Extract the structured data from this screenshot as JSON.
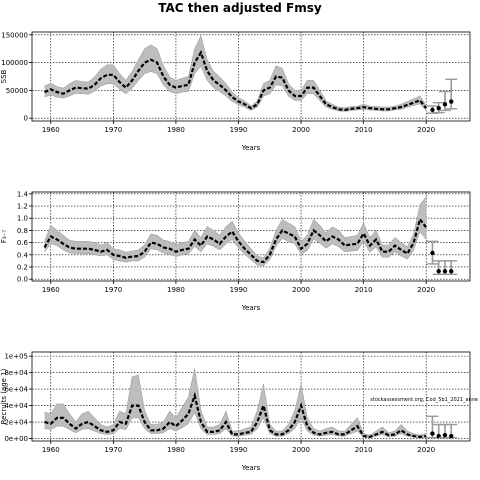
{
  "title": "TAC then adjusted Fmsy",
  "note": "stockassessment.org, Cod_5b1_2021_anne",
  "colors": {
    "band": "#bdbdbd",
    "line": "#000000",
    "forecast": "#999999"
  },
  "chart_data": [
    {
      "type": "line",
      "panel": "ssb",
      "ylabel": "SSB",
      "xlabel": "Years",
      "xlim": [
        1957,
        2027
      ],
      "ylim": [
        -5000,
        155000
      ],
      "xticks": [
        1960,
        1970,
        1980,
        1990,
        2000,
        2010,
        2020
      ],
      "yticks": [
        0,
        50000,
        100000,
        150000
      ],
      "ytick_labels": [
        "0",
        "50000",
        "100000",
        "150000"
      ],
      "grid": true,
      "years": [
        1959,
        1960,
        1961,
        1962,
        1963,
        1964,
        1965,
        1966,
        1967,
        1968,
        1969,
        1970,
        1971,
        1972,
        1973,
        1974,
        1975,
        1976,
        1977,
        1978,
        1979,
        1980,
        1981,
        1982,
        1983,
        1984,
        1985,
        1986,
        1987,
        1988,
        1989,
        1990,
        1991,
        1992,
        1993,
        1994,
        1995,
        1996,
        1997,
        1998,
        1999,
        2000,
        2001,
        2002,
        2003,
        2004,
        2005,
        2006,
        2007,
        2008,
        2009,
        2010,
        2011,
        2012,
        2013,
        2014,
        2015,
        2016,
        2017,
        2018,
        2019,
        2020
      ],
      "estimate": [
        47000,
        52000,
        47000,
        44000,
        50000,
        55000,
        54000,
        53000,
        60000,
        72000,
        78000,
        78000,
        65000,
        55000,
        68000,
        85000,
        100000,
        105000,
        100000,
        75000,
        60000,
        55000,
        58000,
        60000,
        100000,
        118000,
        85000,
        68000,
        60000,
        50000,
        38000,
        30000,
        25000,
        18000,
        25000,
        50000,
        55000,
        75000,
        73000,
        50000,
        40000,
        40000,
        55000,
        55000,
        40000,
        25000,
        20000,
        16000,
        15000,
        17000,
        18000,
        20000,
        18000,
        17000,
        16000,
        16000,
        18000,
        20000,
        24000,
        28000,
        32000,
        18000
      ],
      "lower": [
        38000,
        42000,
        38000,
        36000,
        40000,
        45000,
        44000,
        43000,
        49000,
        58000,
        62000,
        62000,
        52000,
        44000,
        54000,
        68000,
        80000,
        84000,
        80000,
        60000,
        48000,
        44000,
        47000,
        48000,
        80000,
        94000,
        68000,
        55000,
        48000,
        40000,
        30000,
        24000,
        20000,
        14000,
        20000,
        40000,
        44000,
        60000,
        58000,
        40000,
        32000,
        32000,
        44000,
        44000,
        32000,
        20000,
        16000,
        13000,
        12000,
        14000,
        15000,
        16000,
        15000,
        14000,
        13000,
        13000,
        15000,
        16000,
        20000,
        23000,
        26000,
        14000
      ],
      "upper": [
        58000,
        63000,
        57000,
        54000,
        62000,
        68000,
        66000,
        65000,
        74000,
        88000,
        96000,
        96000,
        80000,
        68000,
        84000,
        105000,
        125000,
        132000,
        125000,
        94000,
        74000,
        68000,
        72000,
        75000,
        125000,
        148000,
        105000,
        84000,
        74000,
        62000,
        47000,
        37000,
        31000,
        22000,
        31000,
        62000,
        68000,
        94000,
        90000,
        62000,
        50000,
        50000,
        68000,
        68000,
        50000,
        31000,
        25000,
        20000,
        19000,
        21000,
        22000,
        25000,
        22000,
        21000,
        20000,
        20000,
        22000,
        25000,
        30000,
        35000,
        40000,
        23000
      ],
      "forecast_years": [
        2021,
        2022,
        2023,
        2024
      ],
      "forecast": [
        15000,
        18000,
        25000,
        30000
      ],
      "forecast_lower": [
        9000,
        10000,
        14000,
        17000
      ],
      "forecast_upper": [
        22000,
        28000,
        48000,
        70000
      ]
    },
    {
      "type": "line",
      "panel": "fbar",
      "ylabel": "F₃₋₇",
      "xlabel": "Years",
      "xlim": [
        1957,
        2027
      ],
      "ylim": [
        -0.03,
        1.43
      ],
      "xticks": [
        1960,
        1970,
        1980,
        1990,
        2000,
        2010,
        2020
      ],
      "yticks": [
        0.0,
        0.2,
        0.4,
        0.6,
        0.8,
        1.0,
        1.2,
        1.4
      ],
      "ytick_labels": [
        "0.0",
        "0.2",
        "0.4",
        "0.6",
        "0.8",
        "1.0",
        "1.2",
        "1.4"
      ],
      "grid": true,
      "years": [
        1959,
        1960,
        1961,
        1962,
        1963,
        1964,
        1965,
        1966,
        1967,
        1968,
        1969,
        1970,
        1971,
        1972,
        1973,
        1974,
        1975,
        1976,
        1977,
        1978,
        1979,
        1980,
        1981,
        1982,
        1983,
        1984,
        1985,
        1986,
        1987,
        1988,
        1989,
        1990,
        1991,
        1992,
        1993,
        1994,
        1995,
        1996,
        1997,
        1998,
        1999,
        2000,
        2001,
        2002,
        2003,
        2004,
        2005,
        2006,
        2007,
        2008,
        2009,
        2010,
        2011,
        2012,
        2013,
        2014,
        2015,
        2016,
        2017,
        2018,
        2019,
        2020
      ],
      "estimate": [
        0.52,
        0.7,
        0.65,
        0.58,
        0.52,
        0.5,
        0.5,
        0.5,
        0.48,
        0.45,
        0.48,
        0.4,
        0.38,
        0.35,
        0.37,
        0.38,
        0.45,
        0.6,
        0.58,
        0.52,
        0.5,
        0.45,
        0.48,
        0.5,
        0.65,
        0.55,
        0.7,
        0.65,
        0.58,
        0.7,
        0.78,
        0.62,
        0.5,
        0.4,
        0.3,
        0.28,
        0.4,
        0.65,
        0.8,
        0.75,
        0.7,
        0.5,
        0.58,
        0.8,
        0.72,
        0.62,
        0.7,
        0.65,
        0.55,
        0.57,
        0.58,
        0.75,
        0.55,
        0.65,
        0.45,
        0.45,
        0.55,
        0.48,
        0.42,
        0.6,
        0.98,
        0.85
      ],
      "lower": [
        0.45,
        0.58,
        0.55,
        0.48,
        0.43,
        0.42,
        0.42,
        0.42,
        0.4,
        0.38,
        0.4,
        0.32,
        0.3,
        0.28,
        0.3,
        0.3,
        0.36,
        0.5,
        0.48,
        0.43,
        0.41,
        0.37,
        0.4,
        0.42,
        0.54,
        0.45,
        0.58,
        0.54,
        0.48,
        0.58,
        0.65,
        0.51,
        0.41,
        0.32,
        0.23,
        0.22,
        0.32,
        0.54,
        0.67,
        0.62,
        0.58,
        0.41,
        0.47,
        0.66,
        0.59,
        0.51,
        0.58,
        0.53,
        0.45,
        0.46,
        0.47,
        0.62,
        0.44,
        0.53,
        0.36,
        0.36,
        0.45,
        0.38,
        0.33,
        0.48,
        0.78,
        0.65
      ],
      "upper": [
        0.62,
        0.88,
        0.8,
        0.72,
        0.64,
        0.62,
        0.62,
        0.62,
        0.6,
        0.56,
        0.6,
        0.5,
        0.48,
        0.44,
        0.46,
        0.48,
        0.56,
        0.74,
        0.72,
        0.64,
        0.62,
        0.56,
        0.6,
        0.62,
        0.8,
        0.68,
        0.86,
        0.8,
        0.72,
        0.86,
        0.95,
        0.76,
        0.62,
        0.5,
        0.38,
        0.35,
        0.5,
        0.8,
        0.98,
        0.92,
        0.86,
        0.62,
        0.72,
        0.98,
        0.88,
        0.76,
        0.86,
        0.8,
        0.68,
        0.7,
        0.72,
        0.92,
        0.68,
        0.8,
        0.56,
        0.56,
        0.68,
        0.6,
        0.53,
        0.74,
        1.22,
        1.35
      ],
      "forecast_years": [
        2021,
        2022,
        2023,
        2024
      ],
      "forecast": [
        0.43,
        0.13,
        0.13,
        0.13
      ],
      "forecast_lower": [
        0.25,
        0.08,
        0.08,
        0.08
      ],
      "forecast_upper": [
        0.62,
        0.3,
        0.3,
        0.3
      ]
    },
    {
      "type": "line",
      "panel": "recruits",
      "ylabel": "Recruits (age 1)",
      "xlabel": "Years",
      "xlim": [
        1957,
        2027
      ],
      "ylim": [
        -3000,
        105000
      ],
      "xticks": [
        1960,
        1970,
        1980,
        1990,
        2000,
        2010,
        2020
      ],
      "yticks": [
        0,
        20000,
        40000,
        60000,
        80000,
        100000
      ],
      "ytick_labels": [
        "0e+00",
        "2e+04",
        "4e+04",
        "6e+04",
        "8e+04",
        "1e+05"
      ],
      "grid": true,
      "years": [
        1959,
        1960,
        1961,
        1962,
        1963,
        1964,
        1965,
        1966,
        1967,
        1968,
        1969,
        1970,
        1971,
        1972,
        1973,
        1974,
        1975,
        1976,
        1977,
        1978,
        1979,
        1980,
        1981,
        1982,
        1983,
        1984,
        1985,
        1986,
        1987,
        1988,
        1989,
        1990,
        1991,
        1992,
        1993,
        1994,
        1995,
        1996,
        1997,
        1998,
        1999,
        2000,
        2001,
        2002,
        2003,
        2004,
        2005,
        2006,
        2007,
        2008,
        2009,
        2010,
        2011,
        2012,
        2013,
        2014,
        2015,
        2016,
        2017,
        2018,
        2019,
        2020
      ],
      "estimate": [
        20000,
        18000,
        25000,
        25000,
        18000,
        12000,
        18000,
        20000,
        15000,
        10000,
        8000,
        10000,
        20000,
        18000,
        40000,
        40000,
        20000,
        10000,
        10000,
        12000,
        20000,
        15000,
        22000,
        30000,
        52000,
        20000,
        8000,
        8000,
        10000,
        20000,
        5000,
        5000,
        7000,
        8000,
        20000,
        40000,
        10000,
        5000,
        5000,
        10000,
        20000,
        40000,
        15000,
        7000,
        5000,
        7000,
        8000,
        5000,
        5000,
        10000,
        15000,
        3000,
        2000,
        5000,
        8000,
        4000,
        5000,
        10000,
        5000,
        3000,
        2000,
        3000
      ],
      "lower": [
        12000,
        11000,
        15000,
        15000,
        11000,
        7000,
        11000,
        12000,
        9000,
        6000,
        5000,
        6000,
        12000,
        11000,
        25000,
        25000,
        12000,
        6000,
        6000,
        7000,
        12000,
        9000,
        13000,
        18000,
        32000,
        12000,
        5000,
        5000,
        6000,
        12000,
        3000,
        3000,
        4000,
        5000,
        12000,
        25000,
        6000,
        3000,
        3000,
        6000,
        12000,
        25000,
        9000,
        4000,
        3000,
        4000,
        5000,
        3000,
        3000,
        6000,
        9000,
        1500,
        1000,
        3000,
        5000,
        2000,
        3000,
        6000,
        3000,
        1500,
        1000,
        1500
      ],
      "upper": [
        32000,
        30000,
        42000,
        42000,
        30000,
        20000,
        30000,
        33000,
        25000,
        17000,
        14000,
        17000,
        33000,
        30000,
        75000,
        77000,
        34000,
        17000,
        17000,
        20000,
        33000,
        25000,
        38000,
        50000,
        85000,
        34000,
        14000,
        14000,
        17000,
        33000,
        9000,
        9000,
        12000,
        14000,
        34000,
        66000,
        17000,
        9000,
        9000,
        17000,
        34000,
        66000,
        25000,
        12000,
        9000,
        12000,
        14000,
        9000,
        9000,
        17000,
        25000,
        6000,
        4000,
        9000,
        14000,
        7000,
        9000,
        17000,
        9000,
        6000,
        4000,
        6000
      ],
      "forecast_years": [
        2021,
        2022,
        2023,
        2024
      ],
      "forecast": [
        6000,
        3000,
        4000,
        3000
      ],
      "forecast_lower": [
        1000,
        1000,
        1000,
        1000
      ],
      "forecast_upper": [
        27000,
        17000,
        17000,
        17000
      ]
    }
  ]
}
